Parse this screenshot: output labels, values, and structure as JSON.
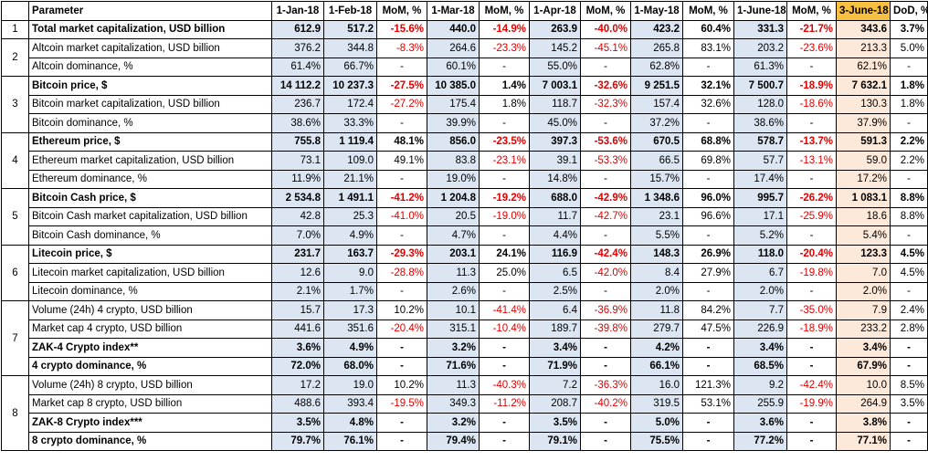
{
  "columns": [
    "",
    "Parameter",
    "1-Jan-18",
    "1-Feb-18",
    "MoM, %",
    "1-Mar-18",
    "MoM, %",
    "1-Apr-18",
    "MoM, %",
    "1-May-18",
    "MoM, %",
    "1-June-18",
    "MoM, %",
    "3-June-18",
    "DoD, %"
  ],
  "colors": {
    "header_date": "#b7d0ee",
    "header_highlight": "#f8c040",
    "cell_date": "#dce6f2",
    "cell_highlight": "#fde9d9",
    "negative": "#e00000"
  },
  "groups": [
    {
      "num": "1",
      "rows": [
        {
          "label": "Total market capitalization, USD billion",
          "bold": true,
          "values": [
            "612.9",
            "517.2",
            "-15.6%",
            "440.0",
            "-14.9%",
            "263.9",
            "-40.0%",
            "423.2",
            "60.4%",
            "331.3",
            "-21.7%",
            "343.6",
            "3.7%"
          ]
        }
      ]
    },
    {
      "num": "2",
      "rows": [
        {
          "label": "Altcoin market capitalization, USD billion",
          "bold": false,
          "values": [
            "376.2",
            "344.8",
            "-8.3%",
            "264.6",
            "-23.3%",
            "145.2",
            "-45.1%",
            "265.8",
            "83.1%",
            "203.2",
            "-23.6%",
            "213.3",
            "5.0%"
          ]
        },
        {
          "label": "Altcoin dominance, %",
          "bold": false,
          "values": [
            "61.4%",
            "66.7%",
            "-",
            "60.1%",
            "-",
            "55.0%",
            "-",
            "62.8%",
            "-",
            "61.3%",
            "-",
            "62.1%",
            "-"
          ]
        }
      ]
    },
    {
      "num": "3",
      "rows": [
        {
          "label": "Bitcoin price, $",
          "bold": true,
          "values": [
            "14 112.2",
            "10 237.3",
            "-27.5%",
            "10 385.0",
            "1.4%",
            "7 003.1",
            "-32.6%",
            "9 251.5",
            "32.1%",
            "7 500.7",
            "-18.9%",
            "7 632.1",
            "1.8%"
          ]
        },
        {
          "label": "Bitcoin market capitalization, USD billion",
          "bold": false,
          "values": [
            "236.7",
            "172.4",
            "-27.2%",
            "175.4",
            "1.8%",
            "118.7",
            "-32.3%",
            "157.4",
            "32.6%",
            "128.0",
            "-18.6%",
            "130.3",
            "1.8%"
          ]
        },
        {
          "label": "Bitcoin dominance, %",
          "bold": false,
          "values": [
            "38.6%",
            "33.3%",
            "-",
            "39.9%",
            "-",
            "45.0%",
            "-",
            "37.2%",
            "-",
            "38.6%",
            "-",
            "37.9%",
            "-"
          ]
        }
      ]
    },
    {
      "num": "4",
      "rows": [
        {
          "label": "Ethereum price, $",
          "bold": true,
          "values": [
            "755.8",
            "1 119.4",
            "48.1%",
            "856.0",
            "-23.5%",
            "397.3",
            "-53.6%",
            "670.5",
            "68.8%",
            "578.7",
            "-13.7%",
            "591.3",
            "2.2%"
          ]
        },
        {
          "label": "Ethereum market capitalization, USD billion",
          "bold": false,
          "values": [
            "73.1",
            "109.0",
            "49.1%",
            "83.8",
            "-23.1%",
            "39.1",
            "-53.3%",
            "66.5",
            "69.8%",
            "57.7",
            "-13.1%",
            "59.0",
            "2.2%"
          ]
        },
        {
          "label": "Ethereum dominance, %",
          "bold": false,
          "values": [
            "11.9%",
            "21.1%",
            "-",
            "19.0%",
            "-",
            "14.8%",
            "-",
            "15.7%",
            "-",
            "17.4%",
            "-",
            "17.2%",
            "-"
          ]
        }
      ]
    },
    {
      "num": "5",
      "rows": [
        {
          "label": "Bitcoin Cash price, $",
          "bold": true,
          "values": [
            "2 534.8",
            "1 491.1",
            "-41.2%",
            "1 204.8",
            "-19.2%",
            "688.0",
            "-42.9%",
            "1 348.6",
            "96.0%",
            "995.7",
            "-26.2%",
            "1 083.1",
            "8.8%"
          ]
        },
        {
          "label": "Bitcoin Cash market capitalization, USD billion",
          "bold": false,
          "values": [
            "42.8",
            "25.3",
            "-41.0%",
            "20.5",
            "-19.0%",
            "11.7",
            "-42.7%",
            "23.1",
            "96.6%",
            "17.1",
            "-25.9%",
            "18.6",
            "8.8%"
          ]
        },
        {
          "label": "Bitcoin Cash dominance, %",
          "bold": false,
          "values": [
            "7.0%",
            "4.9%",
            "-",
            "4.7%",
            "-",
            "4.4%",
            "-",
            "5.5%",
            "-",
            "5.2%",
            "-",
            "5.4%",
            "-"
          ]
        }
      ]
    },
    {
      "num": "6",
      "rows": [
        {
          "label": "Litecoin price, $",
          "bold": true,
          "values": [
            "231.7",
            "163.7",
            "-29.3%",
            "203.1",
            "24.1%",
            "116.9",
            "-42.4%",
            "148.3",
            "26.9%",
            "118.0",
            "-20.4%",
            "123.3",
            "4.5%"
          ]
        },
        {
          "label": "Litecoin market capitalization, USD billion",
          "bold": false,
          "values": [
            "12.6",
            "9.0",
            "-28.8%",
            "11.3",
            "25.0%",
            "6.5",
            "-42.0%",
            "8.4",
            "27.9%",
            "6.7",
            "-19.8%",
            "7.0",
            "4.5%"
          ]
        },
        {
          "label": "Litecoin dominance, %",
          "bold": false,
          "values": [
            "2.1%",
            "1.7%",
            "-",
            "2.6%",
            "-",
            "2.5%",
            "-",
            "2.0%",
            "-",
            "2.0%",
            "-",
            "2.0%",
            "-"
          ]
        }
      ]
    },
    {
      "num": "7",
      "rows": [
        {
          "label": "Volume (24h) 4 crypto, USD billion",
          "bold": false,
          "values": [
            "15.7",
            "17.3",
            "10.2%",
            "10.1",
            "-41.4%",
            "6.4",
            "-36.9%",
            "11.8",
            "84.2%",
            "7.7",
            "-35.0%",
            "7.9",
            "2.4%"
          ]
        },
        {
          "label": "Market cap 4 crypto, USD billion",
          "bold": false,
          "values": [
            "441.6",
            "351.6",
            "-20.4%",
            "315.1",
            "-10.4%",
            "189.7",
            "-39.8%",
            "279.7",
            "47.5%",
            "226.9",
            "-18.9%",
            "233.2",
            "2.8%"
          ]
        },
        {
          "label": "ZAK-4 Crypto index**",
          "bold": true,
          "values": [
            "3.6%",
            "4.9%",
            "-",
            "3.2%",
            "-",
            "3.4%",
            "-",
            "4.2%",
            "-",
            "3.4%",
            "-",
            "3.4%",
            "-"
          ]
        },
        {
          "label": "4 crypto dominance, %",
          "bold": true,
          "values": [
            "72.0%",
            "68.0%",
            "-",
            "71.6%",
            "-",
            "71.9%",
            "-",
            "66.1%",
            "-",
            "68.5%",
            "-",
            "67.9%",
            "-"
          ]
        }
      ]
    },
    {
      "num": "8",
      "rows": [
        {
          "label": "Volume (24h) 8 crypto, USD billion",
          "bold": false,
          "values": [
            "17.2",
            "19.0",
            "10.2%",
            "11.3",
            "-40.3%",
            "7.2",
            "-36.3%",
            "16.0",
            "121.3%",
            "9.2",
            "-42.4%",
            "10.0",
            "8.5%"
          ]
        },
        {
          "label": "Market cap 8 crypto, USD billion",
          "bold": false,
          "values": [
            "488.6",
            "393.4",
            "-19.5%",
            "349.3",
            "-11.2%",
            "208.7",
            "-40.2%",
            "319.5",
            "53.1%",
            "255.9",
            "-19.9%",
            "264.9",
            "3.5%"
          ]
        },
        {
          "label": "ZAK-8 Crypto index***",
          "bold": true,
          "values": [
            "3.5%",
            "4.8%",
            "-",
            "3.2%",
            "-",
            "3.5%",
            "-",
            "5.0%",
            "-",
            "3.6%",
            "-",
            "3.8%",
            "-"
          ]
        },
        {
          "label": "8 crypto dominance, %",
          "bold": true,
          "values": [
            "79.7%",
            "76.1%",
            "-",
            "79.4%",
            "-",
            "79.1%",
            "-",
            "75.5%",
            "-",
            "77.2%",
            "-",
            "77.1%",
            "-"
          ]
        }
      ]
    }
  ]
}
